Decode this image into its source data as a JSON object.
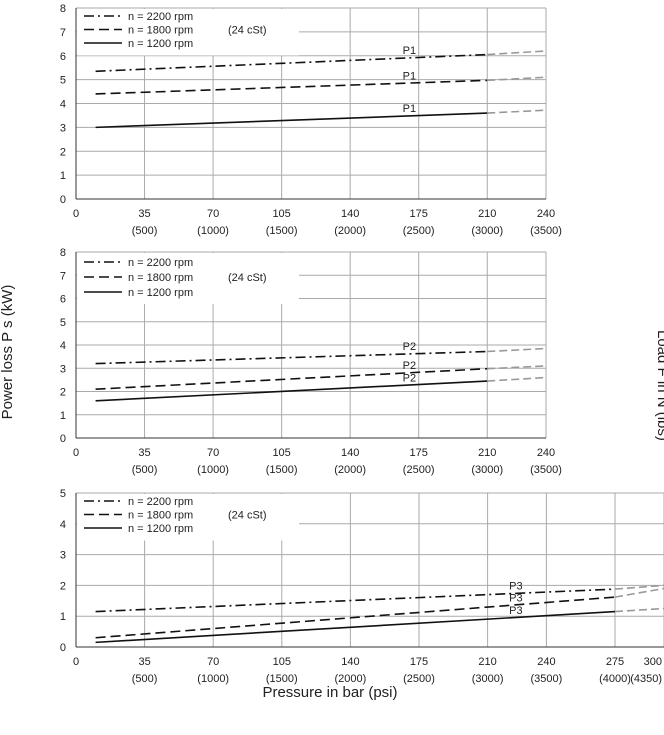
{
  "ylabel": "Power loss P s (kW)",
  "xlabel": "Pressure in bar (psi)",
  "right_label": "Load F in N (lbs)",
  "colors": {
    "line": "#111111",
    "extrapolated": "#999999",
    "grid": "#aaaaaa"
  },
  "chart_data": [
    {
      "type": "line",
      "xlim": [
        0,
        240
      ],
      "ylim": [
        0,
        8
      ],
      "xticks": [
        0,
        35,
        70,
        105,
        140,
        175,
        210,
        240
      ],
      "xtick_labels": [
        "0",
        "35",
        "70",
        "105",
        "140",
        "175",
        "210",
        "240"
      ],
      "xtick_sublabels": [
        "",
        "(500)",
        "(1000)",
        "(1500)",
        "(2000)",
        "(2500)",
        "(3000)",
        "(3500)"
      ],
      "yticks": [
        0,
        1,
        2,
        3,
        4,
        5,
        6,
        7,
        8
      ],
      "ytick_labels": [
        "0",
        "1",
        "2",
        "3",
        "4",
        "5",
        "6",
        "7",
        "8"
      ],
      "legend": [
        "n = 2200 rpm",
        "n = 1800 rpm",
        "n = 1200 rpm"
      ],
      "annotation": "(24 cSt)",
      "series": [
        {
          "name": "n = 2200 rpm",
          "style": "dashdot",
          "label": "P1",
          "x": [
            10,
            210
          ],
          "y": [
            5.35,
            6.05
          ],
          "ext_x": [
            210,
            240
          ],
          "ext_y": [
            6.05,
            6.2
          ]
        },
        {
          "name": "n = 1800 rpm",
          "style": "dash",
          "label": "P1",
          "x": [
            10,
            210
          ],
          "y": [
            4.4,
            4.97
          ],
          "ext_x": [
            210,
            240
          ],
          "ext_y": [
            4.97,
            5.1
          ]
        },
        {
          "name": "n = 1200 rpm",
          "style": "solid",
          "label": "P1",
          "x": [
            10,
            210
          ],
          "y": [
            3.0,
            3.6
          ],
          "ext_x": [
            210,
            240
          ],
          "ext_y": [
            3.6,
            3.72
          ]
        }
      ]
    },
    {
      "type": "line",
      "xlim": [
        0,
        240
      ],
      "ylim": [
        0,
        8
      ],
      "xticks": [
        0,
        35,
        70,
        105,
        140,
        175,
        210,
        240
      ],
      "xtick_labels": [
        "0",
        "35",
        "70",
        "105",
        "140",
        "175",
        "210",
        "240"
      ],
      "xtick_sublabels": [
        "",
        "(500)",
        "(1000)",
        "(1500)",
        "(2000)",
        "(2500)",
        "(3000)",
        "(3500)"
      ],
      "yticks": [
        0,
        1,
        2,
        3,
        4,
        5,
        6,
        7,
        8
      ],
      "ytick_labels": [
        "0",
        "1",
        "2",
        "3",
        "4",
        "5",
        "6",
        "7",
        "8"
      ],
      "legend": [
        "n = 2200 rpm",
        "n = 1800 rpm",
        "n = 1200 rpm"
      ],
      "annotation": "(24 cSt)",
      "series": [
        {
          "name": "n = 2200 rpm",
          "style": "dashdot",
          "label": "P2",
          "x": [
            10,
            210
          ],
          "y": [
            3.2,
            3.72
          ],
          "ext_x": [
            210,
            240
          ],
          "ext_y": [
            3.72,
            3.85
          ]
        },
        {
          "name": "n = 1800 rpm",
          "style": "dash",
          "label": "P2",
          "x": [
            10,
            210
          ],
          "y": [
            2.1,
            2.98
          ],
          "ext_x": [
            210,
            240
          ],
          "ext_y": [
            2.98,
            3.1
          ]
        },
        {
          "name": "n = 1200 rpm",
          "style": "solid",
          "label": "P2",
          "x": [
            10,
            210
          ],
          "y": [
            1.6,
            2.45
          ],
          "ext_x": [
            210,
            240
          ],
          "ext_y": [
            2.45,
            2.6
          ]
        }
      ]
    },
    {
      "type": "line",
      "xlim": [
        0,
        300
      ],
      "ylim": [
        0,
        5
      ],
      "xticks": [
        0,
        35,
        70,
        105,
        140,
        175,
        210,
        240,
        275,
        300
      ],
      "xtick_labels": [
        "0",
        "35",
        "70",
        "105",
        "140",
        "175",
        "210",
        "240",
        "275",
        "300"
      ],
      "xtick_sublabels": [
        "",
        "(500)",
        "(1000)",
        "(1500)",
        "(2000)",
        "(2500)",
        "(3000)",
        "(3500)",
        "(4000)",
        "(4350)"
      ],
      "yticks": [
        0,
        1,
        2,
        3,
        4,
        5
      ],
      "ytick_labels": [
        "0",
        "1",
        "2",
        "3",
        "4",
        "5"
      ],
      "legend": [
        "n = 2200 rpm",
        "n = 1800 rpm",
        "n = 1200 rpm"
      ],
      "annotation": "(24 cSt)",
      "series": [
        {
          "name": "n = 2200 rpm",
          "style": "dashdot",
          "label": "P3",
          "x": [
            10,
            275
          ],
          "y": [
            1.15,
            1.88
          ],
          "ext_x": [
            275,
            300
          ],
          "ext_y": [
            1.88,
            2.0
          ]
        },
        {
          "name": "n = 1800 rpm",
          "style": "dash",
          "label": "P3",
          "x": [
            10,
            275
          ],
          "y": [
            0.3,
            1.62
          ],
          "ext_x": [
            275,
            300
          ],
          "ext_y": [
            1.62,
            1.9
          ]
        },
        {
          "name": "n = 1200 rpm",
          "style": "solid",
          "label": "P3",
          "x": [
            10,
            275
          ],
          "y": [
            0.15,
            1.15
          ],
          "ext_x": [
            275,
            300
          ],
          "ext_y": [
            1.15,
            1.25
          ]
        }
      ]
    }
  ]
}
